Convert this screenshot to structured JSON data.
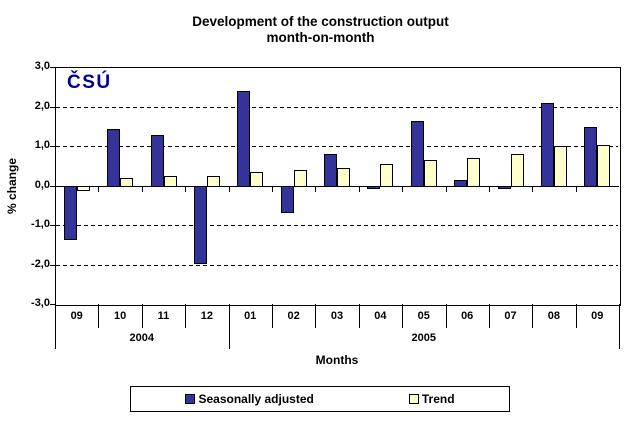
{
  "title": {
    "line1": "Development of the construction output",
    "line2": "month-on-month"
  },
  "logo_text": "ČSÚ",
  "chart_data": {
    "type": "bar",
    "title": "Development of the construction output month-on-month",
    "xlabel": "Months",
    "ylabel": "% change",
    "ylim": [
      -3.0,
      3.0
    ],
    "y_tick_labels": [
      "3,0",
      "2,0",
      "1,0",
      "0,0",
      "-1,0",
      "-2,0",
      "-3,0"
    ],
    "grid": "horizontal dashed lines at 1.0 intervals, solid axis at 0",
    "legend_position": "bottom",
    "categories": [
      "09",
      "10",
      "11",
      "12",
      "01",
      "02",
      "03",
      "04",
      "05",
      "06",
      "07",
      "08",
      "09"
    ],
    "year_groups": [
      {
        "label": "2004",
        "months": 4
      },
      {
        "label": "2005",
        "months": 9
      }
    ],
    "series": [
      {
        "name": "Seasonally adjusted",
        "color": "#333399",
        "values": [
          -1.35,
          1.45,
          1.3,
          -1.95,
          2.4,
          -0.65,
          0.8,
          -0.05,
          1.65,
          0.15,
          -0.05,
          2.1,
          1.5
        ]
      },
      {
        "name": "Trend",
        "color": "#FFFFCC",
        "values": [
          -0.1,
          0.2,
          0.25,
          0.25,
          0.35,
          0.4,
          0.45,
          0.55,
          0.65,
          0.7,
          0.8,
          1.0,
          1.05
        ]
      }
    ]
  },
  "colors": {
    "bar_border": "#000000",
    "axis": "#000000",
    "logo": "#000099",
    "background": "#FFFFFF"
  }
}
